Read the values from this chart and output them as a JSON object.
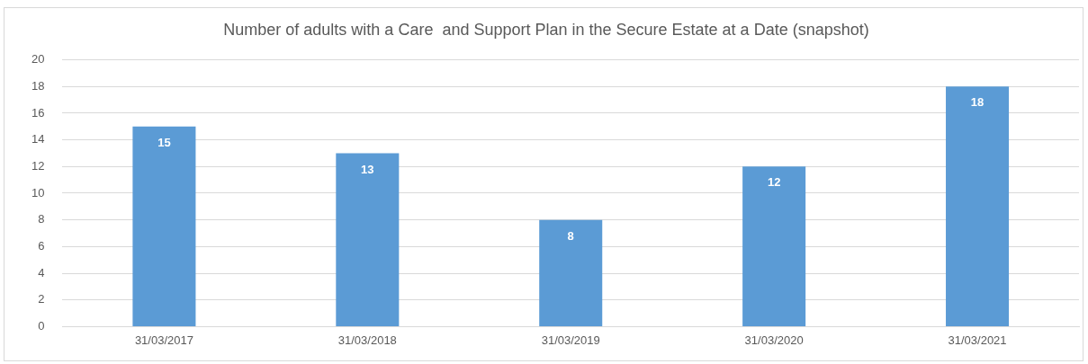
{
  "chart_data": {
    "type": "bar",
    "title": "Number of adults with a Care  and Support Plan in the Secure Estate at a Date (snapshot)",
    "categories": [
      "31/03/2017",
      "31/03/2018",
      "31/03/2019",
      "31/03/2020",
      "31/03/2021"
    ],
    "values": [
      15,
      13,
      8,
      12,
      18
    ],
    "color": "#5b9bd5",
    "ylim": [
      0,
      20
    ],
    "yticks": [
      0,
      2,
      4,
      6,
      8,
      10,
      12,
      14,
      16,
      18,
      20
    ],
    "grid": "y",
    "data_labels": true,
    "legend": false
  }
}
